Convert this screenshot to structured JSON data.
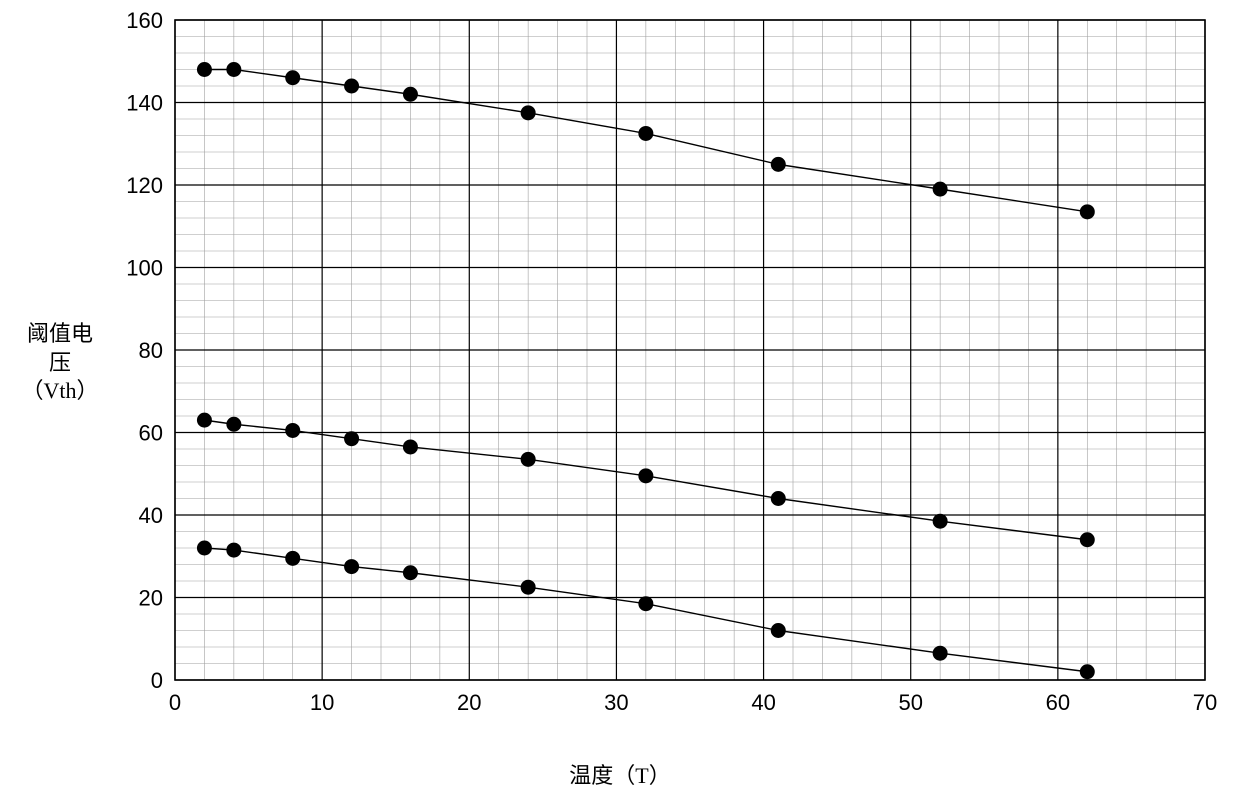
{
  "chart": {
    "type": "scatter-line",
    "background_color": "#ffffff",
    "plot_border_color": "#000000",
    "major_grid_color": "#000000",
    "minor_grid_color": "#a0a0a0",
    "major_grid_width": 1.2,
    "minor_grid_width": 0.6,
    "xlim": [
      0,
      70
    ],
    "ylim": [
      0,
      160
    ],
    "x_major_ticks": [
      0,
      10,
      20,
      30,
      40,
      50,
      60,
      70
    ],
    "x_minor_step": 2,
    "y_major_ticks": [
      0,
      20,
      40,
      60,
      80,
      100,
      120,
      140,
      160
    ],
    "y_minor_step": 4,
    "tick_label_fontsize": 22,
    "tick_label_color": "#000000",
    "xlabel": "温度（T）",
    "ylabel_line1": "阈值电",
    "ylabel_line2": "压",
    "ylabel_line3": "（Vth）",
    "label_fontsize": 22,
    "marker_radius": 7.5,
    "marker_color": "#000000",
    "line_color": "#000000",
    "line_width": 1.4,
    "series": [
      {
        "name": "top",
        "x": [
          2,
          4,
          8,
          12,
          16,
          24,
          32,
          41,
          52,
          62
        ],
        "y": [
          148,
          148,
          146,
          144,
          142,
          137.5,
          132.5,
          125,
          119,
          113.5
        ]
      },
      {
        "name": "middle",
        "x": [
          2,
          4,
          8,
          12,
          16,
          24,
          32,
          41,
          52,
          62
        ],
        "y": [
          63,
          62,
          60.5,
          58.5,
          56.5,
          53.5,
          49.5,
          44,
          38.5,
          34
        ]
      },
      {
        "name": "bottom",
        "x": [
          2,
          4,
          8,
          12,
          16,
          24,
          32,
          41,
          52,
          62
        ],
        "y": [
          32,
          31.5,
          29.5,
          27.5,
          26,
          22.5,
          18.5,
          12,
          6.5,
          2
        ]
      }
    ]
  }
}
